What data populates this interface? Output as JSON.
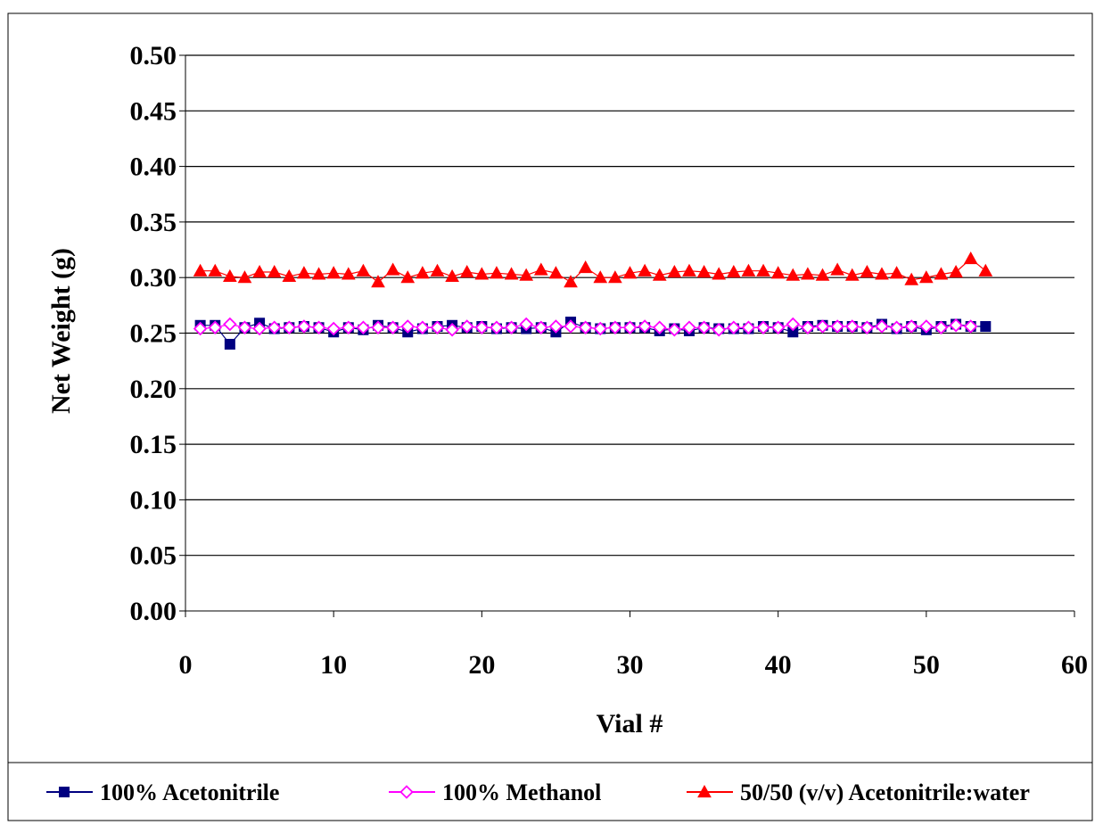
{
  "chart_data": {
    "type": "line",
    "title": "",
    "xlabel": "Vial #",
    "ylabel": "Net Weight (g)",
    "xlim": [
      0,
      60
    ],
    "ylim": [
      0,
      0.5
    ],
    "xticks": [
      "0",
      "10",
      "20",
      "30",
      "40",
      "50",
      "60"
    ],
    "yticks": [
      "0.00",
      "0.05",
      "0.10",
      "0.15",
      "0.20",
      "0.25",
      "0.30",
      "0.35",
      "0.40",
      "0.45",
      "0.50"
    ],
    "grid": "horizontal",
    "legend_position": "bottom",
    "series": [
      {
        "name": "100% Acetonitrile",
        "color": "#000080",
        "marker": "square",
        "x": [
          1,
          2,
          3,
          4,
          5,
          6,
          7,
          8,
          9,
          10,
          11,
          12,
          13,
          14,
          15,
          16,
          17,
          18,
          19,
          20,
          21,
          22,
          23,
          24,
          25,
          26,
          27,
          28,
          29,
          30,
          31,
          32,
          33,
          34,
          35,
          36,
          37,
          38,
          39,
          40,
          41,
          42,
          43,
          44,
          45,
          46,
          47,
          48,
          49,
          50,
          51,
          52,
          53,
          54
        ],
        "values": [
          0.257,
          0.257,
          0.24,
          0.255,
          0.259,
          0.254,
          0.255,
          0.256,
          0.255,
          0.251,
          0.255,
          0.253,
          0.257,
          0.255,
          0.251,
          0.254,
          0.256,
          0.257,
          0.255,
          0.256,
          0.254,
          0.255,
          0.254,
          0.255,
          0.251,
          0.26,
          0.255,
          0.254,
          0.255,
          0.255,
          0.255,
          0.252,
          0.254,
          0.252,
          0.255,
          0.254,
          0.254,
          0.254,
          0.256,
          0.255,
          0.251,
          0.256,
          0.257,
          0.256,
          0.256,
          0.255,
          0.258,
          0.254,
          0.256,
          0.253,
          0.256,
          0.258,
          0.256,
          0.256
        ]
      },
      {
        "name": "100% Methanol",
        "color": "#ff00ff",
        "marker": "diamond-open",
        "x": [
          1,
          2,
          3,
          4,
          5,
          6,
          7,
          8,
          9,
          10,
          11,
          12,
          13,
          14,
          15,
          16,
          17,
          18,
          19,
          20,
          21,
          22,
          23,
          24,
          25,
          26,
          27,
          28,
          29,
          30,
          31,
          32,
          33,
          34,
          35,
          36,
          37,
          38,
          39,
          40,
          41,
          42,
          43,
          44,
          45,
          46,
          47,
          48,
          49,
          50,
          51,
          52,
          53
        ],
        "values": [
          0.254,
          0.255,
          0.258,
          0.255,
          0.254,
          0.255,
          0.255,
          0.256,
          0.255,
          0.254,
          0.255,
          0.255,
          0.255,
          0.255,
          0.256,
          0.255,
          0.255,
          0.253,
          0.256,
          0.255,
          0.255,
          0.255,
          0.258,
          0.255,
          0.256,
          0.256,
          0.255,
          0.254,
          0.255,
          0.255,
          0.256,
          0.255,
          0.253,
          0.255,
          0.255,
          0.253,
          0.255,
          0.255,
          0.255,
          0.255,
          0.258,
          0.255,
          0.256,
          0.256,
          0.256,
          0.255,
          0.256,
          0.255,
          0.256,
          0.256,
          0.255,
          0.257,
          0.256
        ]
      },
      {
        "name": "50/50 (v/v) Acetonitrile:water",
        "color": "#ff0000",
        "marker": "triangle",
        "x": [
          1,
          2,
          3,
          4,
          5,
          6,
          7,
          8,
          9,
          10,
          11,
          12,
          13,
          14,
          15,
          16,
          17,
          18,
          19,
          20,
          21,
          22,
          23,
          24,
          25,
          26,
          27,
          28,
          29,
          30,
          31,
          32,
          33,
          34,
          35,
          36,
          37,
          38,
          39,
          40,
          41,
          42,
          43,
          44,
          45,
          46,
          47,
          48,
          49,
          50,
          51,
          52,
          53,
          54
        ],
        "values": [
          0.306,
          0.306,
          0.301,
          0.3,
          0.305,
          0.305,
          0.301,
          0.304,
          0.303,
          0.304,
          0.303,
          0.306,
          0.296,
          0.307,
          0.3,
          0.304,
          0.306,
          0.301,
          0.305,
          0.303,
          0.304,
          0.303,
          0.302,
          0.307,
          0.304,
          0.296,
          0.309,
          0.3,
          0.3,
          0.304,
          0.306,
          0.302,
          0.305,
          0.306,
          0.305,
          0.303,
          0.305,
          0.306,
          0.306,
          0.304,
          0.302,
          0.303,
          0.302,
          0.307,
          0.302,
          0.305,
          0.303,
          0.304,
          0.298,
          0.3,
          0.303,
          0.305,
          0.317,
          0.306
        ]
      }
    ]
  }
}
